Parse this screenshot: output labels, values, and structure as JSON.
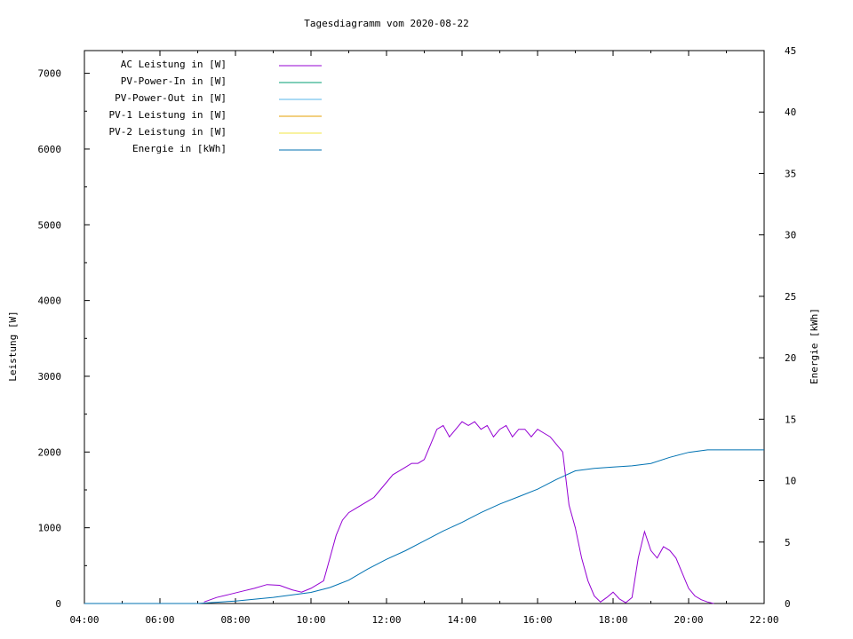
{
  "chart_data": {
    "type": "line",
    "title": "Tagesdiagramm vom 2020-08-22",
    "ylabel": "Leistung [W]",
    "y2label": "Energie [kWh]",
    "xlim": [
      "04:00",
      "22:00"
    ],
    "ylim": [
      0,
      7300
    ],
    "y2lim": [
      0,
      45
    ],
    "x_ticks": [
      "04:00",
      "06:00",
      "08:00",
      "10:00",
      "12:00",
      "14:00",
      "16:00",
      "18:00",
      "20:00",
      "22:00"
    ],
    "y_ticks": [
      0,
      1000,
      2000,
      3000,
      4000,
      5000,
      6000,
      7000
    ],
    "y2_ticks": [
      0,
      5,
      10,
      15,
      20,
      25,
      30,
      35,
      40,
      45
    ],
    "legend_position": "top-left",
    "series": [
      {
        "name": "AC Leistung in [W]",
        "color": "#9400d3",
        "axis": "left",
        "x": [
          "07:10",
          "07:30",
          "07:50",
          "08:10",
          "08:30",
          "08:50",
          "09:10",
          "09:30",
          "09:45",
          "10:00",
          "10:20",
          "10:30",
          "10:40",
          "10:50",
          "11:00",
          "11:10",
          "11:20",
          "11:30",
          "11:40",
          "11:50",
          "12:00",
          "12:10",
          "12:20",
          "12:30",
          "12:40",
          "12:50",
          "13:00",
          "13:10",
          "13:20",
          "13:30",
          "13:40",
          "13:50",
          "14:00",
          "14:10",
          "14:20",
          "14:30",
          "14:40",
          "14:50",
          "15:00",
          "15:10",
          "15:20",
          "15:30",
          "15:40",
          "15:50",
          "16:00",
          "16:10",
          "16:20",
          "16:30",
          "16:40",
          "16:50",
          "17:00",
          "17:10",
          "17:20",
          "17:30",
          "17:40",
          "17:50",
          "18:00",
          "18:10",
          "18:20",
          "18:30",
          "18:40",
          "18:50",
          "19:00",
          "19:10",
          "19:20",
          "19:30",
          "19:40",
          "19:50",
          "20:00",
          "20:10",
          "20:20",
          "20:30",
          "20:40"
        ],
        "values": [
          20,
          80,
          120,
          160,
          200,
          250,
          240,
          180,
          150,
          200,
          300,
          600,
          900,
          1100,
          1200,
          1250,
          1300,
          1350,
          1400,
          1500,
          1600,
          1700,
          1750,
          1800,
          1850,
          1850,
          1900,
          2100,
          2300,
          2350,
          2200,
          2300,
          2400,
          2350,
          2400,
          2300,
          2350,
          2200,
          2300,
          2350,
          2200,
          2300,
          2300,
          2200,
          2300,
          2250,
          2200,
          2100,
          2000,
          1300,
          1000,
          600,
          300,
          100,
          20,
          80,
          150,
          60,
          10,
          80,
          600,
          950,
          700,
          600,
          750,
          700,
          600,
          400,
          200,
          100,
          50,
          20,
          0
        ]
      },
      {
        "name": "PV-Power-In in [W]",
        "color": "#009e73",
        "axis": "left",
        "x": [],
        "values": []
      },
      {
        "name": "PV-Power-Out in [W]",
        "color": "#56b4e9",
        "axis": "left",
        "x": [],
        "values": []
      },
      {
        "name": "PV-1 Leistung in [W]",
        "color": "#e69f00",
        "axis": "left",
        "x": [],
        "values": []
      },
      {
        "name": "PV-2 Leistung in [W]",
        "color": "#f0e442",
        "axis": "left",
        "x": [],
        "values": []
      },
      {
        "name": "Energie in [kWh]",
        "color": "#0072b2",
        "axis": "right",
        "x": [
          "04:00",
          "07:00",
          "08:00",
          "09:00",
          "10:00",
          "10:30",
          "11:00",
          "11:30",
          "12:00",
          "12:30",
          "13:00",
          "13:30",
          "14:00",
          "14:30",
          "15:00",
          "15:30",
          "16:00",
          "16:30",
          "17:00",
          "17:30",
          "18:00",
          "18:30",
          "19:00",
          "19:30",
          "20:00",
          "20:30",
          "21:00",
          "22:00"
        ],
        "values": [
          0,
          0,
          0.2,
          0.5,
          0.9,
          1.3,
          1.9,
          2.8,
          3.6,
          4.3,
          5.1,
          5.9,
          6.6,
          7.4,
          8.1,
          8.7,
          9.3,
          10.1,
          10.8,
          11.0,
          11.1,
          11.2,
          11.4,
          11.9,
          12.3,
          12.5,
          12.5,
          12.5
        ]
      }
    ]
  }
}
